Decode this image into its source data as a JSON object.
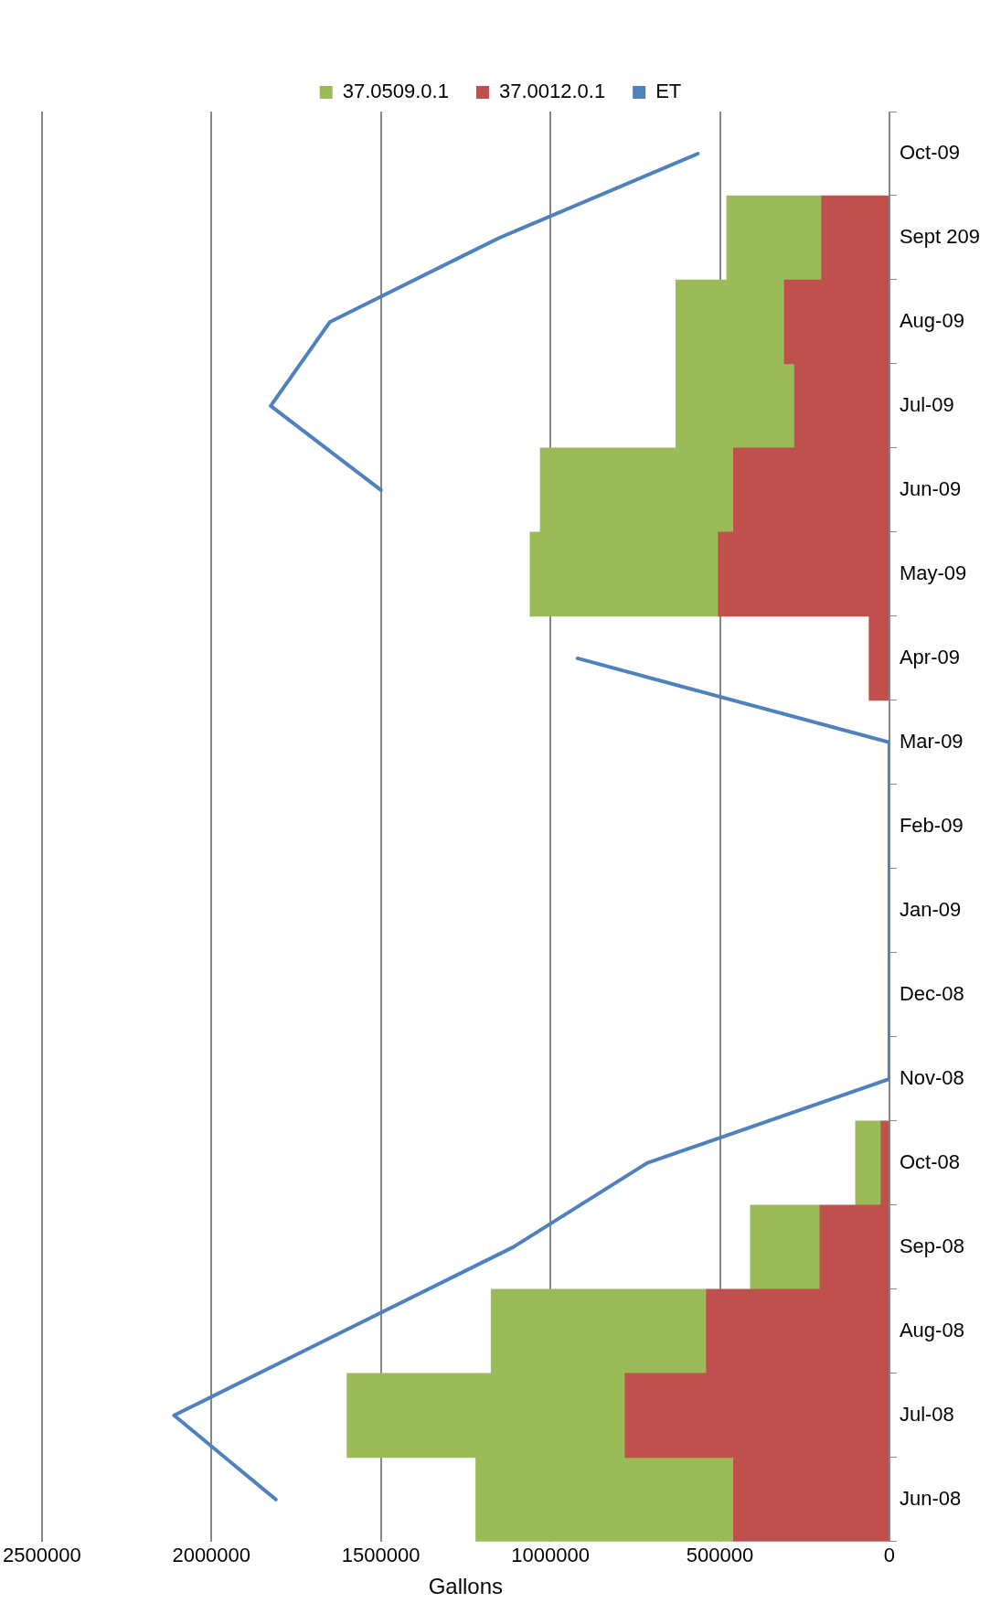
{
  "chart_data": {
    "type": "bar",
    "stacked": true,
    "orientation": "horizontal",
    "xlabel": "Gallons",
    "categories": [
      "Oct-09",
      "Sept 209",
      "Aug-09",
      "Jul-09",
      "Jun-09",
      "May-09",
      "Apr-09",
      "Mar-09",
      "Feb-09",
      "Jan-09",
      "Dec-08",
      "Nov-08",
      "Oct-08",
      "Sep-08",
      "Aug-08",
      "Jul-08",
      "Jun-08"
    ],
    "series": [
      {
        "name": "37.0012.0.1",
        "color": "#c0504d",
        "values": [
          null,
          200000,
          310000,
          280000,
          460000,
          505000,
          60000,
          null,
          null,
          null,
          null,
          null,
          25000,
          205000,
          540000,
          780000,
          460000
        ]
      },
      {
        "name": "37.0509.0.1",
        "color": "#9bbb59",
        "values": [
          null,
          280000,
          320000,
          350000,
          570000,
          555000,
          null,
          null,
          null,
          null,
          null,
          null,
          75000,
          205000,
          635000,
          820000,
          760000
        ]
      },
      {
        "name": "ET",
        "type": "line",
        "color": "#4f81bd",
        "values": [
          565000,
          1150000,
          1650000,
          1825000,
          1500000,
          null,
          920000,
          0,
          0,
          0,
          0,
          0,
          715000,
          1110000,
          1610000,
          2110000,
          1810000
        ]
      }
    ],
    "xlim": [
      2500000,
      0
    ],
    "xticks": [
      2500000,
      2000000,
      1500000,
      1000000,
      500000,
      0
    ],
    "grid": "x",
    "legend": "top",
    "marker": "none"
  }
}
